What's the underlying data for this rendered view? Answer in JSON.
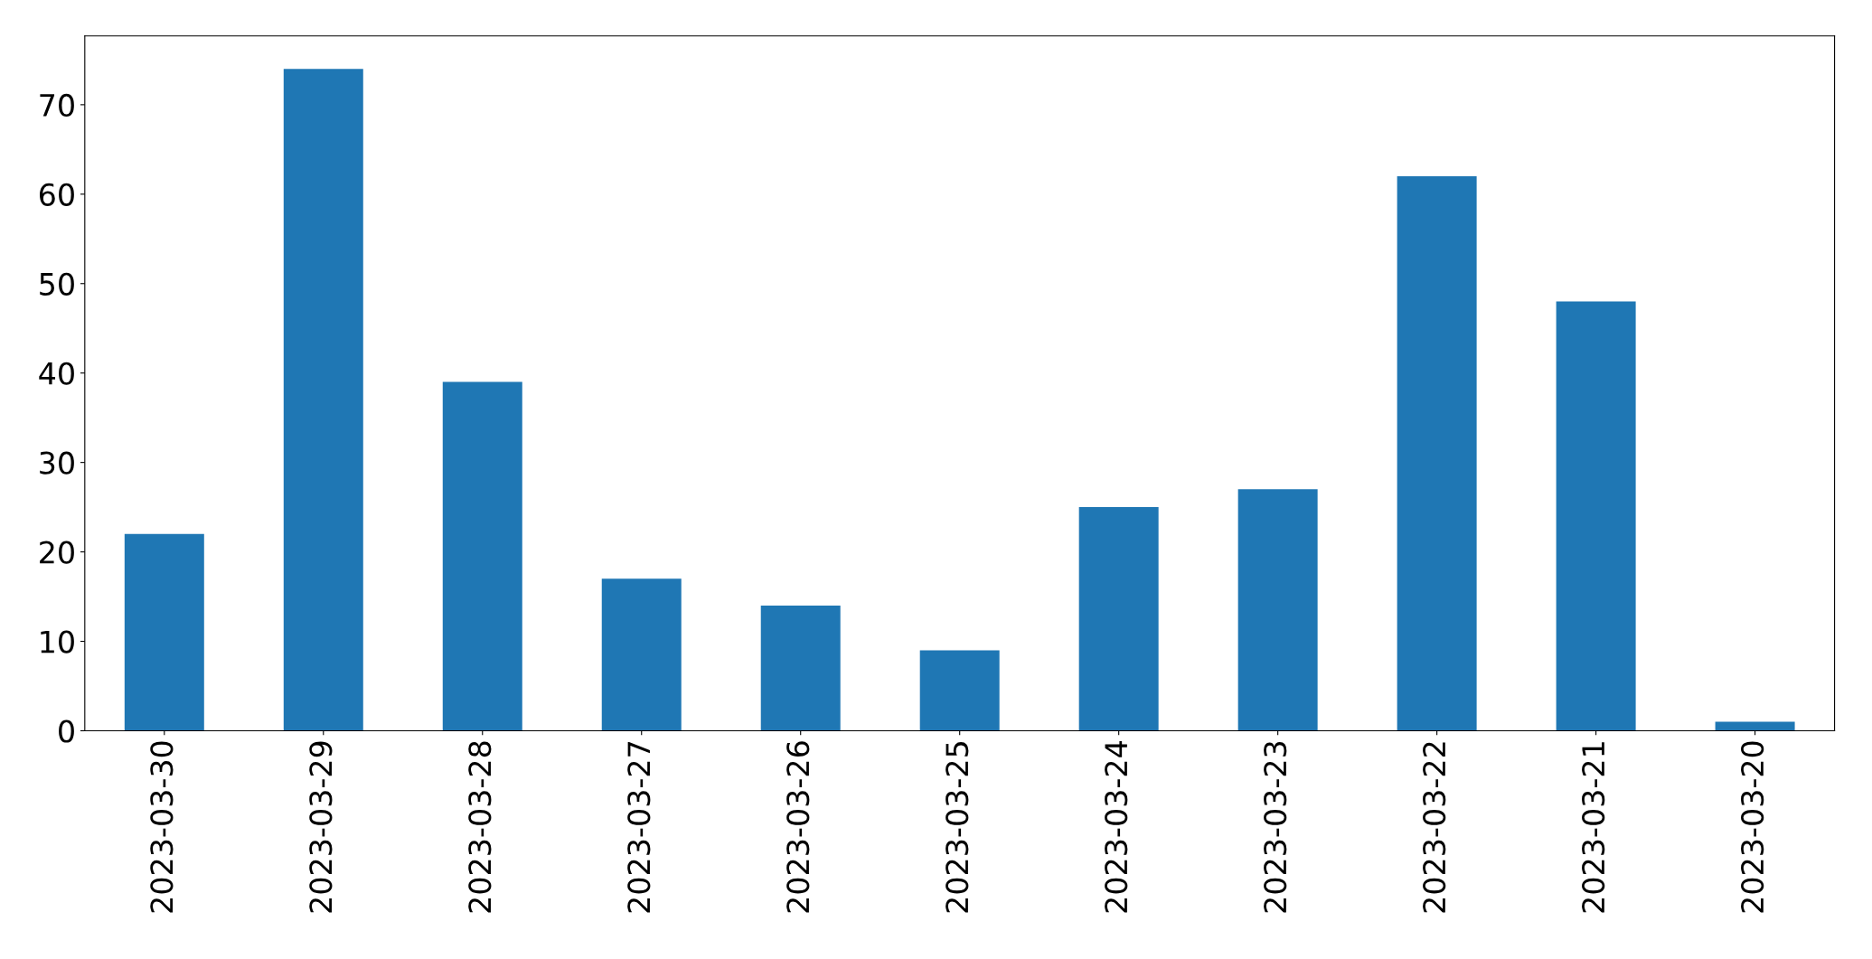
{
  "chart_data": {
    "type": "bar",
    "categories": [
      "2023-03-30",
      "2023-03-29",
      "2023-03-28",
      "2023-03-27",
      "2023-03-26",
      "2023-03-25",
      "2023-03-24",
      "2023-03-23",
      "2023-03-22",
      "2023-03-21",
      "2023-03-20"
    ],
    "values": [
      22,
      74,
      39,
      17,
      14,
      9,
      25,
      27,
      62,
      48,
      1
    ],
    "color": "#1f77b4",
    "ylim": [
      0,
      77.7
    ],
    "yticks": [
      0,
      10,
      20,
      30,
      40,
      50,
      60,
      70
    ],
    "grid": false,
    "legend": false
  }
}
